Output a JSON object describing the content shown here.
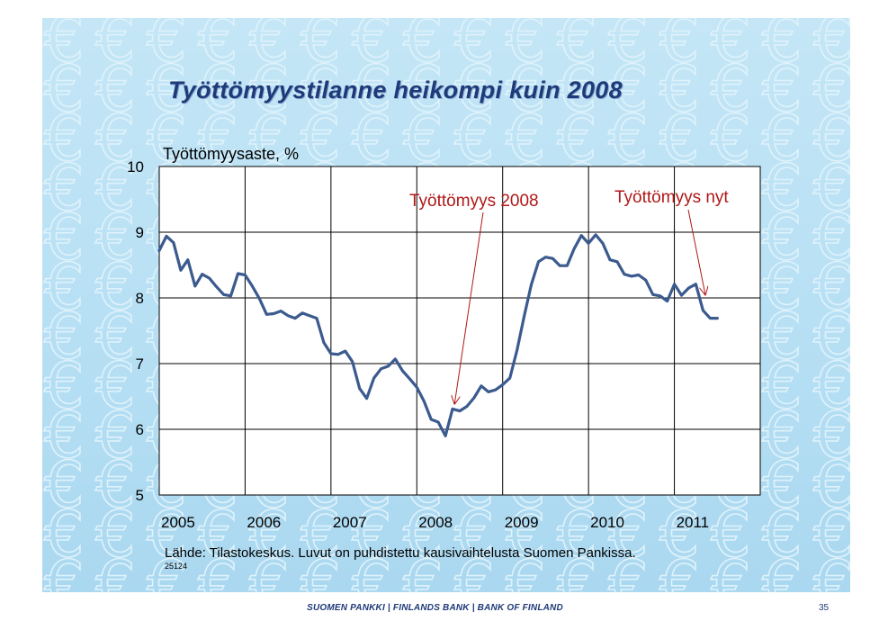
{
  "slide": {
    "title": "Työttömyystilanne heikompi kuin 2008",
    "source": "Lähde: Tilastokeskus. Luvut on puhdistettu kausivaihtelusta Suomen Pankissa.",
    "chart_id": "25124",
    "footer": "SUOMEN PANKKI | FINLANDS BANK | BANK OF FINLAND",
    "page_number": "35"
  },
  "colors": {
    "background": "#b8e0f4",
    "title": "#1f3a78",
    "series": "#3b5a8e",
    "annotation": "#b01818",
    "plot_area": "#ffffff"
  },
  "chart_data": {
    "type": "line",
    "title": "Työttömyystilanne heikompi kuin 2008",
    "ylabel": "Työttömyysaste, %",
    "xlabel": "",
    "ylim": [
      5,
      10
    ],
    "xlim": [
      2005,
      2012
    ],
    "yticks": [
      5,
      6,
      7,
      8,
      9,
      10
    ],
    "xtick_labels": [
      "2005",
      "2006",
      "2007",
      "2008",
      "2009",
      "2010",
      "2011"
    ],
    "grid": true,
    "series": [
      {
        "values": [
          8.72,
          8.94,
          8.84,
          8.42,
          8.58,
          8.18,
          8.36,
          8.3,
          8.17,
          8.05,
          8.03,
          8.37,
          8.35,
          8.18,
          7.99,
          7.75,
          7.76,
          7.8,
          7.73,
          7.69,
          7.77,
          7.73,
          7.69,
          7.32,
          7.15,
          7.14,
          7.19,
          7.03,
          6.62,
          6.47,
          6.78,
          6.92,
          6.96,
          7.07,
          6.89,
          6.77,
          6.64,
          6.43,
          6.15,
          6.11,
          5.9,
          6.31,
          6.28,
          6.35,
          6.48,
          6.66,
          6.57,
          6.6,
          6.68,
          6.78,
          7.2,
          7.72,
          8.2,
          8.55,
          8.62,
          8.6,
          8.49,
          8.49,
          8.75,
          8.95,
          8.83,
          8.96,
          8.83,
          8.58,
          8.55,
          8.36,
          8.33,
          8.35,
          8.27,
          8.05,
          8.03,
          7.95,
          8.21,
          8.04,
          8.15,
          8.21,
          7.81,
          7.69,
          7.69
        ]
      }
    ],
    "annotations": [
      {
        "text": "Työttömyys 2008",
        "arrow_to": {
          "x": 2008.44,
          "y": 6.39
        }
      },
      {
        "text": "Työttömyys nyt",
        "arrow_to": {
          "x": 2011.36,
          "y": 8.05
        }
      }
    ]
  }
}
